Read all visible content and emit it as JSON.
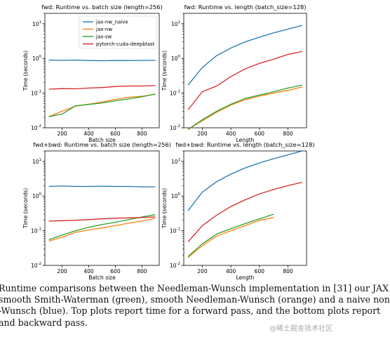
{
  "chart_data": [
    {
      "type": "line",
      "title": "fwd: Runtime vs. batch size (length=256)",
      "xlabel": "Batch size",
      "ylabel": "Time (seconds)",
      "yscale": "log",
      "xlim": [
        70,
        930
      ],
      "ylim": [
        0.01,
        20
      ],
      "xticks": [
        200,
        400,
        600,
        800
      ],
      "yticks": [
        "10^-2",
        "10^-1",
        "10^0",
        "10^1"
      ],
      "legend": "top-right",
      "series": [
        {
          "name": "jax-nw_naive",
          "x": [
            100,
            200,
            300,
            400,
            500,
            600,
            700,
            800,
            900
          ],
          "y": [
            0.9,
            0.88,
            0.9,
            0.87,
            0.86,
            0.87,
            0.87,
            0.88,
            0.88
          ]
        },
        {
          "name": "jax-nw",
          "x": [
            100,
            200,
            300,
            400,
            500,
            600,
            700,
            800,
            900
          ],
          "y": [
            0.021,
            0.03,
            0.042,
            0.048,
            0.055,
            0.066,
            0.076,
            0.081,
            0.092
          ]
        },
        {
          "name": "jax-sw",
          "x": [
            100,
            200,
            300,
            400,
            500,
            600,
            700,
            800,
            900
          ],
          "y": [
            0.021,
            0.025,
            0.043,
            0.047,
            0.052,
            0.06,
            0.068,
            0.078,
            0.094
          ]
        },
        {
          "name": "pytorch-cuda-deepblast",
          "x": [
            100,
            200,
            300,
            400,
            500,
            600,
            700,
            800,
            900
          ],
          "y": [
            0.13,
            0.135,
            0.133,
            0.14,
            0.145,
            0.155,
            0.16,
            0.16,
            0.165
          ]
        }
      ]
    },
    {
      "type": "line",
      "title": "fwd: Runtime vs. length (batch_size=128)",
      "xlabel": "Length",
      "ylabel": "Time (seconds)",
      "yscale": "log",
      "xlim": [
        70,
        930
      ],
      "ylim": [
        0.01,
        20
      ],
      "xticks": [
        200,
        400,
        600,
        800
      ],
      "yticks": [
        "10^-2",
        "10^-1",
        "10^0",
        "10^1"
      ],
      "series": [
        {
          "name": "jax-nw_naive",
          "x": [
            100,
            200,
            300,
            400,
            500,
            600,
            700,
            800,
            900
          ],
          "y": [
            0.17,
            0.55,
            1.2,
            2.0,
            3.0,
            4.1,
            5.5,
            7.0,
            9.0
          ]
        },
        {
          "name": "jax-nw",
          "x": [
            100,
            200,
            300,
            400,
            500,
            600,
            700,
            800,
            900
          ],
          "y": [
            0.009,
            0.016,
            0.028,
            0.045,
            0.065,
            0.082,
            0.1,
            0.12,
            0.15
          ]
        },
        {
          "name": "jax-sw",
          "x": [
            100,
            200,
            300,
            400,
            500,
            600,
            700,
            800,
            900
          ],
          "y": [
            0.009,
            0.017,
            0.03,
            0.048,
            0.07,
            0.088,
            0.11,
            0.14,
            0.17
          ]
        },
        {
          "name": "pytorch-cuda-deepblast",
          "x": [
            100,
            200,
            300,
            400,
            500,
            600,
            700,
            800,
            900
          ],
          "y": [
            0.033,
            0.11,
            0.16,
            0.3,
            0.5,
            0.72,
            0.95,
            1.3,
            1.6
          ]
        }
      ]
    },
    {
      "type": "line",
      "title": "fwd+bwd: Runtime vs. batch size (length=256)",
      "xlabel": "Batch size",
      "ylabel": "Time (seconds)",
      "yscale": "log",
      "xlim": [
        70,
        930
      ],
      "ylim": [
        0.01,
        20
      ],
      "xticks": [
        200,
        400,
        600,
        800
      ],
      "yticks": [
        "10^-2",
        "10^-1",
        "10^0",
        "10^1"
      ],
      "series": [
        {
          "name": "jax-nw_naive",
          "x": [
            100,
            200,
            300,
            400,
            500,
            600,
            700,
            800,
            900
          ],
          "y": [
            1.9,
            1.95,
            1.9,
            1.9,
            1.92,
            1.9,
            1.9,
            1.85,
            1.85
          ]
        },
        {
          "name": "jax-nw",
          "x": [
            100,
            200,
            300,
            400,
            500,
            600,
            700,
            800,
            900
          ],
          "y": [
            0.05,
            0.065,
            0.09,
            0.105,
            0.12,
            0.14,
            0.165,
            0.19,
            0.23
          ]
        },
        {
          "name": "jax-sw",
          "x": [
            100,
            200,
            300,
            400,
            500,
            600,
            700,
            800,
            900
          ],
          "y": [
            0.055,
            0.075,
            0.1,
            0.125,
            0.15,
            0.175,
            0.21,
            0.25,
            0.29
          ]
        },
        {
          "name": "pytorch-cuda-deepblast",
          "x": [
            100,
            200,
            300,
            400,
            500,
            600,
            700,
            800,
            900
          ],
          "y": [
            0.19,
            0.195,
            0.2,
            0.21,
            0.22,
            0.23,
            0.235,
            0.24,
            0.25
          ]
        }
      ]
    },
    {
      "type": "line",
      "title": "fwd+bwd: Runtime vs. length (batch_size=128)",
      "xlabel": "Length",
      "ylabel": "Time (seconds)",
      "yscale": "log",
      "xlim": [
        70,
        930
      ],
      "ylim": [
        0.01,
        20
      ],
      "xticks": [
        200,
        400,
        600,
        800
      ],
      "yticks": [
        "10^-2",
        "10^-1",
        "10^0",
        "10^1"
      ],
      "series": [
        {
          "name": "jax-nw_naive",
          "x": [
            100,
            200,
            300,
            400,
            500,
            600,
            700,
            800,
            900
          ],
          "y": [
            0.38,
            1.3,
            2.6,
            4.3,
            6.5,
            9.0,
            12,
            15.5,
            20
          ]
        },
        {
          "name": "jax-nw",
          "x": [
            100,
            200,
            300,
            400,
            500,
            600,
            700
          ],
          "y": [
            0.017,
            0.037,
            0.07,
            0.1,
            0.14,
            0.2,
            0.24
          ]
        },
        {
          "name": "jax-sw",
          "x": [
            100,
            200,
            300,
            400,
            500,
            600,
            700
          ],
          "y": [
            0.018,
            0.042,
            0.08,
            0.115,
            0.16,
            0.22,
            0.3
          ]
        },
        {
          "name": "pytorch-cuda-deepblast",
          "x": [
            100,
            200,
            300,
            400,
            500,
            600,
            700,
            800,
            900
          ],
          "y": [
            0.048,
            0.14,
            0.28,
            0.5,
            0.78,
            1.15,
            1.55,
            2.0,
            2.5
          ]
        }
      ]
    }
  ],
  "colors": {
    "jax-nw_naive": "#1f77b4",
    "jax-nw": "#ff7f0e",
    "jax-sw": "#2ca02c",
    "pytorch-cuda-deepblast": "#d62728"
  },
  "caption": {
    "lines": [
      "Runtime comparisons between the Needleman-Wunsch implementation in [31] our JAX",
      "smooth Smith-Waterman (green), smooth Needleman-Wunsch (orange) and a naive non",
      "-Wunsch (blue). Top plots report time for a forward pass, and the bottom plots report",
      "and backward pass."
    ]
  },
  "watermark": "@稀土掘金技术社区"
}
